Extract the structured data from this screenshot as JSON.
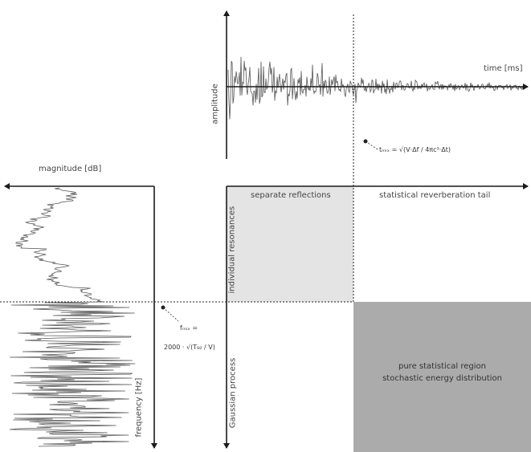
{
  "time_axis": {
    "label": "time [ms]"
  },
  "amplitude_axis": {
    "label": "amplitude"
  },
  "magnitude_axis": {
    "label": "magnitude [dB]"
  },
  "frequency_axis": {
    "label": "frequency [Hz]"
  },
  "regions": {
    "separate_reflections": "separate reflections",
    "statistical_tail": "statistical reverberation tail",
    "individual_resonances": "individual resonances",
    "gaussian_process": "Gaussian process",
    "pure_statistical": [
      "pure statistical region",
      "stochastic energy distribution"
    ]
  },
  "formulas": {
    "time_formula": "tₘᵢₓ = √(V·Δf / 4πc³·Δt)",
    "freq_formula_top": "fₘᵢₓ =",
    "freq_formula_bottom": "2000 · √(T₆₀ / V)"
  },
  "colors": {
    "light_region": "#e4e4e4",
    "dark_region": "#ababab",
    "axis": "#1a1a1a",
    "signal": "#555555"
  }
}
